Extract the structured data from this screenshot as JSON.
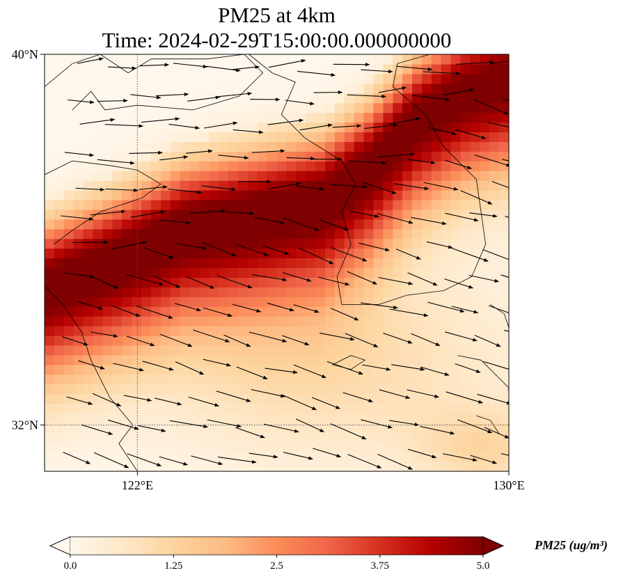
{
  "chart_data": {
    "type": "heatmap",
    "variable": "PM25",
    "title": "PM25 at 4km",
    "subtitle": "Time: 2024-02-29T15:00:00.000000000",
    "xlim": [
      120.0,
      130.0
    ],
    "ylim": [
      31.0,
      40.0
    ],
    "x_ticks": [
      {
        "value": 122,
        "label": "122°E"
      },
      {
        "value": 130,
        "label": "130°E"
      }
    ],
    "y_ticks": [
      {
        "value": 40,
        "label": "40°N"
      },
      {
        "value": 32,
        "label": "32°N"
      }
    ],
    "grid": "dotted gridlines at 122°E and 32°N",
    "colormap": "OrRd",
    "colorbar": {
      "label": "PM25 (ug/m³)",
      "min": 0.0,
      "max": 5.0,
      "ticks": [
        "0.0",
        "1.25",
        "2.5",
        "3.75",
        "5.0"
      ],
      "tick_values": [
        0.0,
        1.25,
        2.5,
        3.75,
        5.0
      ],
      "extend": "both",
      "placement": "bottom",
      "colors": [
        "#fff7ec",
        "#fee8c8",
        "#fdd49e",
        "#fdbb84",
        "#fc8d59",
        "#ef6548",
        "#d7301f",
        "#b30000",
        "#7f0000"
      ]
    },
    "plume": {
      "description_values": "high concentration band from west coast toward northeast",
      "core_value": 5.0,
      "axis_points": [
        {
          "lon": 120.0,
          "lat": 35.0
        },
        {
          "lon": 121.5,
          "lat": 35.6
        },
        {
          "lon": 123.0,
          "lat": 36.3
        },
        {
          "lon": 124.5,
          "lat": 36.6
        },
        {
          "lon": 126.0,
          "lat": 36.9
        },
        {
          "lon": 127.0,
          "lat": 37.6
        },
        {
          "lon": 128.0,
          "lat": 38.6
        },
        {
          "lon": 129.0,
          "lat": 39.2
        },
        {
          "lon": 130.0,
          "lat": 39.5
        }
      ]
    },
    "wind_vectors": "black arrows, predominantly west-to-east / east-southeast"
  }
}
